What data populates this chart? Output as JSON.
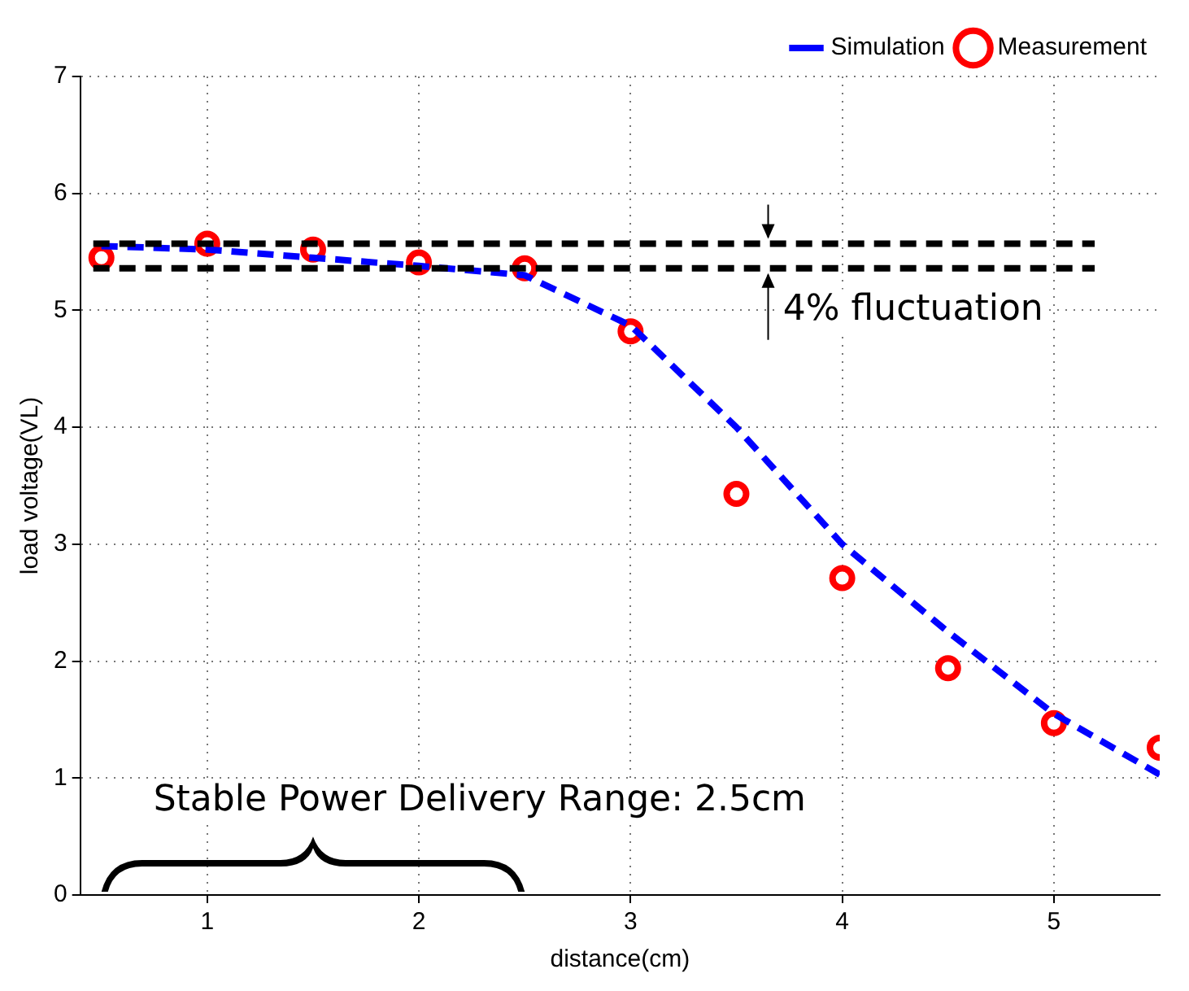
{
  "chart_data": {
    "type": "line",
    "xlabel": "distance(cm)",
    "ylabel": "load voltage(VL)",
    "xlim": [
      0.4,
      5.5
    ],
    "xticks": [
      1,
      2,
      3,
      4,
      5
    ],
    "ylim": [
      0,
      7
    ],
    "yticks": [
      0,
      1,
      2,
      3,
      4,
      5,
      6,
      7
    ],
    "grid": true,
    "legend": "top right",
    "series": [
      {
        "name": "Simulation",
        "color": "#0000ff",
        "line_style": "dashed",
        "marker": "none",
        "x": [
          0.5,
          1,
          1.5,
          2,
          2.5,
          3,
          3.5,
          4,
          4.5,
          5,
          5.5
        ],
        "values": [
          5.55,
          5.52,
          5.45,
          5.38,
          5.3,
          4.87,
          4.0,
          3.0,
          2.25,
          1.55,
          1.03
        ]
      },
      {
        "name": "Measurement",
        "type": "scatter",
        "color": "#ff0000",
        "marker": "circle",
        "x": [
          0.5,
          1,
          1.5,
          2,
          2.5,
          3,
          3.5,
          4,
          4.5,
          5,
          5.5
        ],
        "values": [
          5.45,
          5.57,
          5.52,
          5.41,
          5.36,
          4.82,
          3.43,
          2.71,
          1.94,
          1.47,
          1.26
        ]
      }
    ],
    "ref_lines": [
      {
        "axis": "y",
        "value": 5.57,
        "color": "#000000",
        "line_style": "dashed"
      },
      {
        "axis": "y",
        "value": 5.36,
        "color": "#000000",
        "line_style": "dashed"
      }
    ],
    "annotations": [
      "4% fluctuation",
      "Stable Power Delivery Range: 2.5cm"
    ]
  }
}
